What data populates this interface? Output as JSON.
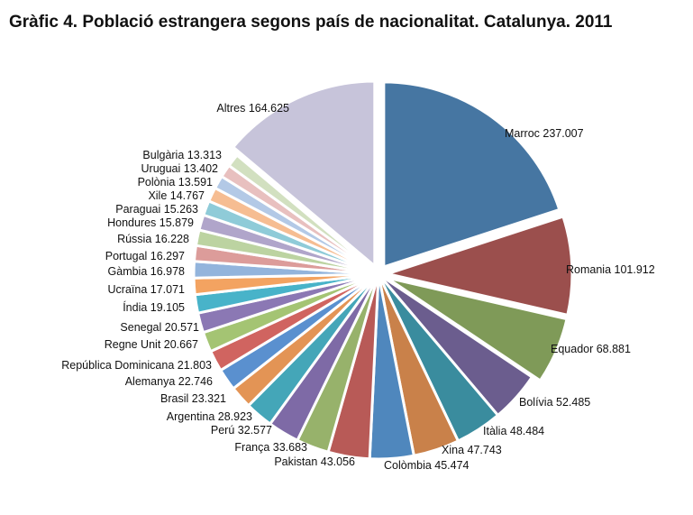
{
  "chart_data": {
    "type": "pie",
    "title": "Gràfic 4. Població estrangera segons país de nacionalitat. Catalunya. 2011",
    "slices": [
      {
        "label": "Marroc",
        "value_text": "237.007",
        "value": 237007,
        "color": "#4676a2"
      },
      {
        "label": "Romania",
        "value_text": "101.912",
        "value": 101912,
        "color": "#9b4f4d"
      },
      {
        "label": "Equador",
        "value_text": "68.881",
        "value": 68881,
        "color": "#7f9a58"
      },
      {
        "label": "Bolívia",
        "value_text": "52.485",
        "value": 52485,
        "color": "#6b5d8e"
      },
      {
        "label": "Itàlia",
        "value_text": "48.484",
        "value": 48484,
        "color": "#3a8c9e"
      },
      {
        "label": "Xina",
        "value_text": "47.743",
        "value": 47743,
        "color": "#c9814a"
      },
      {
        "label": "Colòmbia",
        "value_text": "45.474",
        "value": 45474,
        "color": "#4f87bd"
      },
      {
        "label": "Pakistan",
        "value_text": "43.056",
        "value": 43056,
        "color": "#b85a57"
      },
      {
        "label": "França",
        "value_text": "33.683",
        "value": 33683,
        "color": "#97b26b"
      },
      {
        "label": "Perú",
        "value_text": "32.577",
        "value": 32577,
        "color": "#7e6aa6"
      },
      {
        "label": "Argentina",
        "value_text": "28.923",
        "value": 28923,
        "color": "#44a6b8"
      },
      {
        "label": "Brasil",
        "value_text": "23.321",
        "value": 23321,
        "color": "#e39455"
      },
      {
        "label": "Alemanya",
        "value_text": "22.746",
        "value": 22746,
        "color": "#5a90cf"
      },
      {
        "label": "República Dominicana",
        "value_text": "21.803",
        "value": 21803,
        "color": "#d06460"
      },
      {
        "label": "Regne Unit",
        "value_text": "20.667",
        "value": 20667,
        "color": "#a4c473"
      },
      {
        "label": "Senegal",
        "value_text": "20.571",
        "value": 20571,
        "color": "#8b78b4"
      },
      {
        "label": "Índia",
        "value_text": "19.105",
        "value": 19105,
        "color": "#48b3c9"
      },
      {
        "label": "Ucraïna",
        "value_text": "17.071",
        "value": 17071,
        "color": "#f3a361"
      },
      {
        "label": "Gàmbia",
        "value_text": "16.978",
        "value": 16978,
        "color": "#93b4dc"
      },
      {
        "label": "Portugal",
        "value_text": "16.297",
        "value": 16297,
        "color": "#dc9c9a"
      },
      {
        "label": "Rússia",
        "value_text": "16.228",
        "value": 16228,
        "color": "#bcd3a1"
      },
      {
        "label": "Hondures",
        "value_text": "15.879",
        "value": 15879,
        "color": "#b0a5ca"
      },
      {
        "label": "Paraguai",
        "value_text": "15.263",
        "value": 15263,
        "color": "#8fcbd8"
      },
      {
        "label": "Xile",
        "value_text": "14.767",
        "value": 14767,
        "color": "#f6bd92"
      },
      {
        "label": "Polònia",
        "value_text": "13.591",
        "value": 13591,
        "color": "#b3c9e6"
      },
      {
        "label": "Uruguai",
        "value_text": "13.402",
        "value": 13402,
        "color": "#e8c0bf"
      },
      {
        "label": "Bulgària",
        "value_text": "13.313",
        "value": 13313,
        "color": "#d2e0c0"
      },
      {
        "label": "Altres",
        "value_text": "164.625",
        "value": 164625,
        "color": "#c7c4da"
      }
    ]
  }
}
